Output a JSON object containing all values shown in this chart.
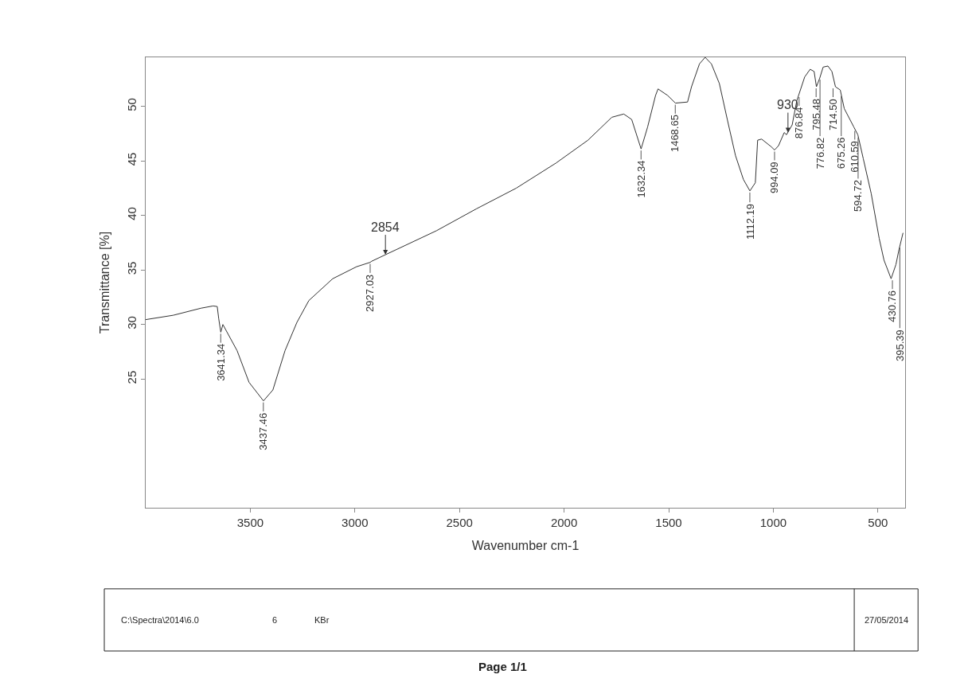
{
  "chart_data": {
    "type": "line",
    "xlabel": "Wavenumber cm-1",
    "ylabel": "Transmittance [%]",
    "xlim": [
      4000,
      370
    ],
    "xticks": [
      3500,
      3000,
      2500,
      2000,
      1500,
      1000,
      500
    ],
    "ylim": [
      13.2,
      54.5
    ],
    "yticks": [
      25,
      30,
      35,
      40,
      45,
      50
    ],
    "series": [
      {
        "color": "#333333",
        "x": [
          4000,
          3868,
          3735,
          3678,
          3658,
          3651,
          3641,
          3631,
          3563,
          3506,
          3437,
          3392,
          3334,
          3277,
          3220,
          3106,
          2992,
          2927,
          2920,
          2854,
          2610,
          2420,
          2229,
          2039,
          1886,
          1772,
          1715,
          1677,
          1632,
          1601,
          1563,
          1551,
          1505,
          1468,
          1410,
          1391,
          1353,
          1326,
          1296,
          1258,
          1220,
          1181,
          1143,
          1112,
          1086,
          1075,
          1056,
          1010,
          994,
          975,
          948,
          937,
          910,
          888,
          850,
          824,
          805,
          794,
          778,
          762,
          739,
          720,
          703,
          680,
          661,
          615,
          596,
          570,
          532,
          494,
          471,
          437,
          414,
          399,
          380
        ],
        "values": [
          30.45,
          30.85,
          31.5,
          31.7,
          31.65,
          30.55,
          29.3,
          30.0,
          27.6,
          24.7,
          23.0,
          24.0,
          27.6,
          30.2,
          32.2,
          34.2,
          35.3,
          35.7,
          35.8,
          36.4,
          38.6,
          40.6,
          42.5,
          44.8,
          46.9,
          49.0,
          49.3,
          48.8,
          46.1,
          48.1,
          51.0,
          51.6,
          51.0,
          50.3,
          50.4,
          51.8,
          53.9,
          54.5,
          53.9,
          52.1,
          48.8,
          45.5,
          43.3,
          42.25,
          43.0,
          46.9,
          47.0,
          46.3,
          46.0,
          46.4,
          47.6,
          47.4,
          48.3,
          50.5,
          52.7,
          53.4,
          53.2,
          51.8,
          52.6,
          53.6,
          53.7,
          53.2,
          51.8,
          51.5,
          49.8,
          48.1,
          47.4,
          45.2,
          42.0,
          37.9,
          35.9,
          34.2,
          35.5,
          36.9,
          38.4
        ]
      }
    ],
    "annotations": [
      {
        "text": "2854",
        "x": 2854,
        "y": 36.4
      },
      {
        "text": "930",
        "x": 930,
        "y": 47.6
      },
      {
        "text": "3641.34",
        "x": 3641.34,
        "y": 29.3
      },
      {
        "text": "3437.46",
        "x": 3437.46,
        "y": 23.0
      },
      {
        "text": "2927.03",
        "x": 2927.03,
        "y": 35.7
      },
      {
        "text": "1632.34",
        "x": 1632.34,
        "y": 46.1
      },
      {
        "text": "1468.65",
        "x": 1468.65,
        "y": 50.3
      },
      {
        "text": "1112.19",
        "x": 1112.19,
        "y": 42.25
      },
      {
        "text": "994.09",
        "x": 994.09,
        "y": 46.0
      },
      {
        "text": "876.84",
        "x": 876.84,
        "y": 51.0
      },
      {
        "text": "795.48",
        "x": 795.48,
        "y": 51.8
      },
      {
        "text": "776.82",
        "x": 776.82,
        "y": 52.6
      },
      {
        "text": "714.50",
        "x": 714.5,
        "y": 51.8
      },
      {
        "text": "675.26",
        "x": 675.26,
        "y": 51.1
      },
      {
        "text": "610.59",
        "x": 610.59,
        "y": 47.9
      },
      {
        "text": "594.72",
        "x": 594.72,
        "y": 47.3
      },
      {
        "text": "430.76",
        "x": 430.76,
        "y": 34.2
      },
      {
        "text": "395.39",
        "x": 395.39,
        "y": 37.2
      },
      "C:\\Spectra\\2014\\6.0",
      "6",
      "KBr",
      "27/05/2014",
      "Page 1/1"
    ]
  }
}
